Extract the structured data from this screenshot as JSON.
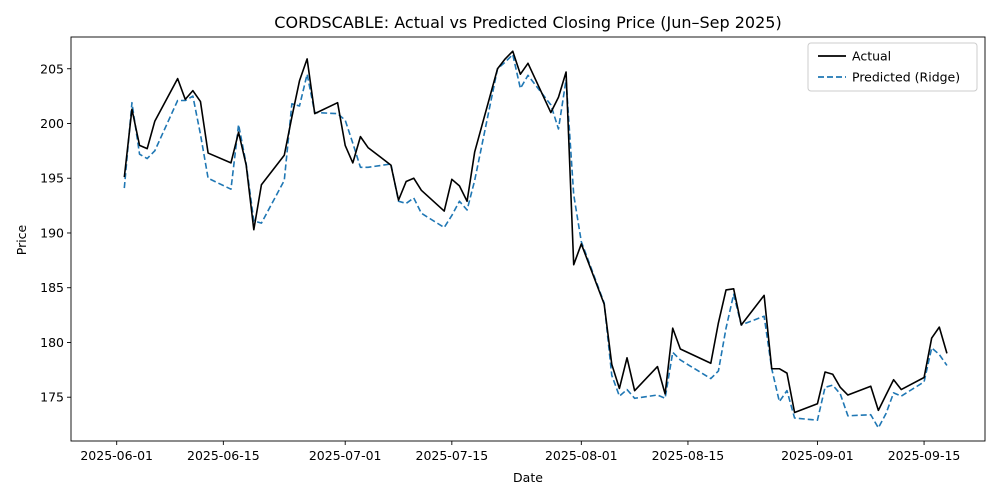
{
  "chart_data": {
    "type": "line",
    "title": "CORDSCABLE: Actual vs Predicted Closing Price (Jun–Sep 2025)",
    "xlabel": "Date",
    "ylabel": "Price",
    "xlim": [
      "2025-05-26",
      "2025-09-23"
    ],
    "ylim": [
      171.0,
      207.9
    ],
    "x_ticks": [
      "2025-06-01",
      "2025-06-15",
      "2025-07-01",
      "2025-07-15",
      "2025-08-01",
      "2025-08-15",
      "2025-09-01",
      "2025-09-15"
    ],
    "y_ticks": [
      175,
      180,
      185,
      190,
      195,
      200,
      205
    ],
    "grid": false,
    "legend_position": "top-right",
    "x": [
      "2025-06-02",
      "2025-06-03",
      "2025-06-04",
      "2025-06-05",
      "2025-06-06",
      "2025-06-09",
      "2025-06-10",
      "2025-06-11",
      "2025-06-12",
      "2025-06-13",
      "2025-06-16",
      "2025-06-17",
      "2025-06-18",
      "2025-06-19",
      "2025-06-20",
      "2025-06-23",
      "2025-06-24",
      "2025-06-25",
      "2025-06-26",
      "2025-06-27",
      "2025-06-30",
      "2025-07-01",
      "2025-07-02",
      "2025-07-03",
      "2025-07-04",
      "2025-07-07",
      "2025-07-08",
      "2025-07-09",
      "2025-07-10",
      "2025-07-11",
      "2025-07-14",
      "2025-07-15",
      "2025-07-16",
      "2025-07-17",
      "2025-07-18",
      "2025-07-21",
      "2025-07-22",
      "2025-07-23",
      "2025-07-24",
      "2025-07-25",
      "2025-07-28",
      "2025-07-29",
      "2025-07-30",
      "2025-07-31",
      "2025-08-01",
      "2025-08-04",
      "2025-08-05",
      "2025-08-06",
      "2025-08-07",
      "2025-08-08",
      "2025-08-11",
      "2025-08-12",
      "2025-08-13",
      "2025-08-14",
      "2025-08-18",
      "2025-08-19",
      "2025-08-20",
      "2025-08-21",
      "2025-08-22",
      "2025-08-25",
      "2025-08-26",
      "2025-08-27",
      "2025-08-28",
      "2025-08-29",
      "2025-09-01",
      "2025-09-02",
      "2025-09-03",
      "2025-09-04",
      "2025-09-05",
      "2025-09-08",
      "2025-09-09",
      "2025-09-10",
      "2025-09-11",
      "2025-09-12",
      "2025-09-15",
      "2025-09-16",
      "2025-09-17",
      "2025-09-18"
    ],
    "series": [
      {
        "name": "Actual",
        "color": "#000000",
        "style": "solid",
        "values": [
          195.1,
          201.3,
          198.0,
          197.7,
          200.2,
          204.1,
          202.2,
          203.0,
          202.0,
          197.3,
          196.4,
          199.2,
          196.2,
          190.3,
          194.4,
          197.1,
          200.6,
          203.9,
          205.9,
          200.9,
          201.9,
          198.0,
          196.4,
          198.8,
          197.8,
          196.2,
          193.0,
          194.7,
          195.0,
          193.9,
          192.0,
          194.9,
          194.3,
          192.9,
          197.4,
          205.0,
          205.9,
          206.6,
          204.5,
          205.5,
          201.0,
          202.4,
          204.7,
          187.1,
          189.0,
          183.5,
          178.0,
          175.8,
          178.6,
          175.6,
          177.8,
          175.3,
          181.3,
          179.4,
          178.1,
          181.8,
          184.8,
          184.9,
          181.6,
          184.3,
          177.6,
          177.6,
          177.2,
          173.6,
          174.4,
          177.3,
          177.1,
          175.9,
          175.2,
          176.0,
          173.8,
          175.2,
          176.6,
          175.7,
          176.8,
          180.4,
          181.4,
          179.0
        ]
      },
      {
        "name": "Predicted (Ridge)",
        "color": "#1f77b4",
        "style": "dashed",
        "values": [
          194.1,
          201.9,
          197.2,
          196.8,
          197.5,
          202.1,
          202.1,
          202.5,
          199.0,
          195.0,
          194.0,
          199.9,
          196.3,
          191.1,
          190.9,
          194.8,
          201.8,
          201.6,
          204.5,
          201.0,
          200.9,
          200.3,
          198.2,
          196.0,
          196.0,
          196.3,
          192.9,
          192.7,
          193.2,
          191.8,
          190.5,
          191.6,
          192.9,
          192.1,
          194.8,
          205.0,
          205.6,
          206.3,
          203.2,
          204.4,
          201.7,
          199.5,
          204.0,
          193.5,
          189.2,
          183.6,
          177.0,
          175.1,
          175.7,
          174.9,
          175.2,
          174.9,
          179.1,
          178.4,
          176.7,
          177.4,
          181.3,
          184.4,
          181.6,
          182.4,
          177.6,
          174.6,
          175.6,
          173.1,
          172.9,
          175.9,
          176.1,
          175.3,
          173.3,
          173.4,
          172.2,
          173.5,
          175.4,
          175.1,
          176.4,
          179.5,
          178.9,
          177.9
        ]
      }
    ]
  }
}
